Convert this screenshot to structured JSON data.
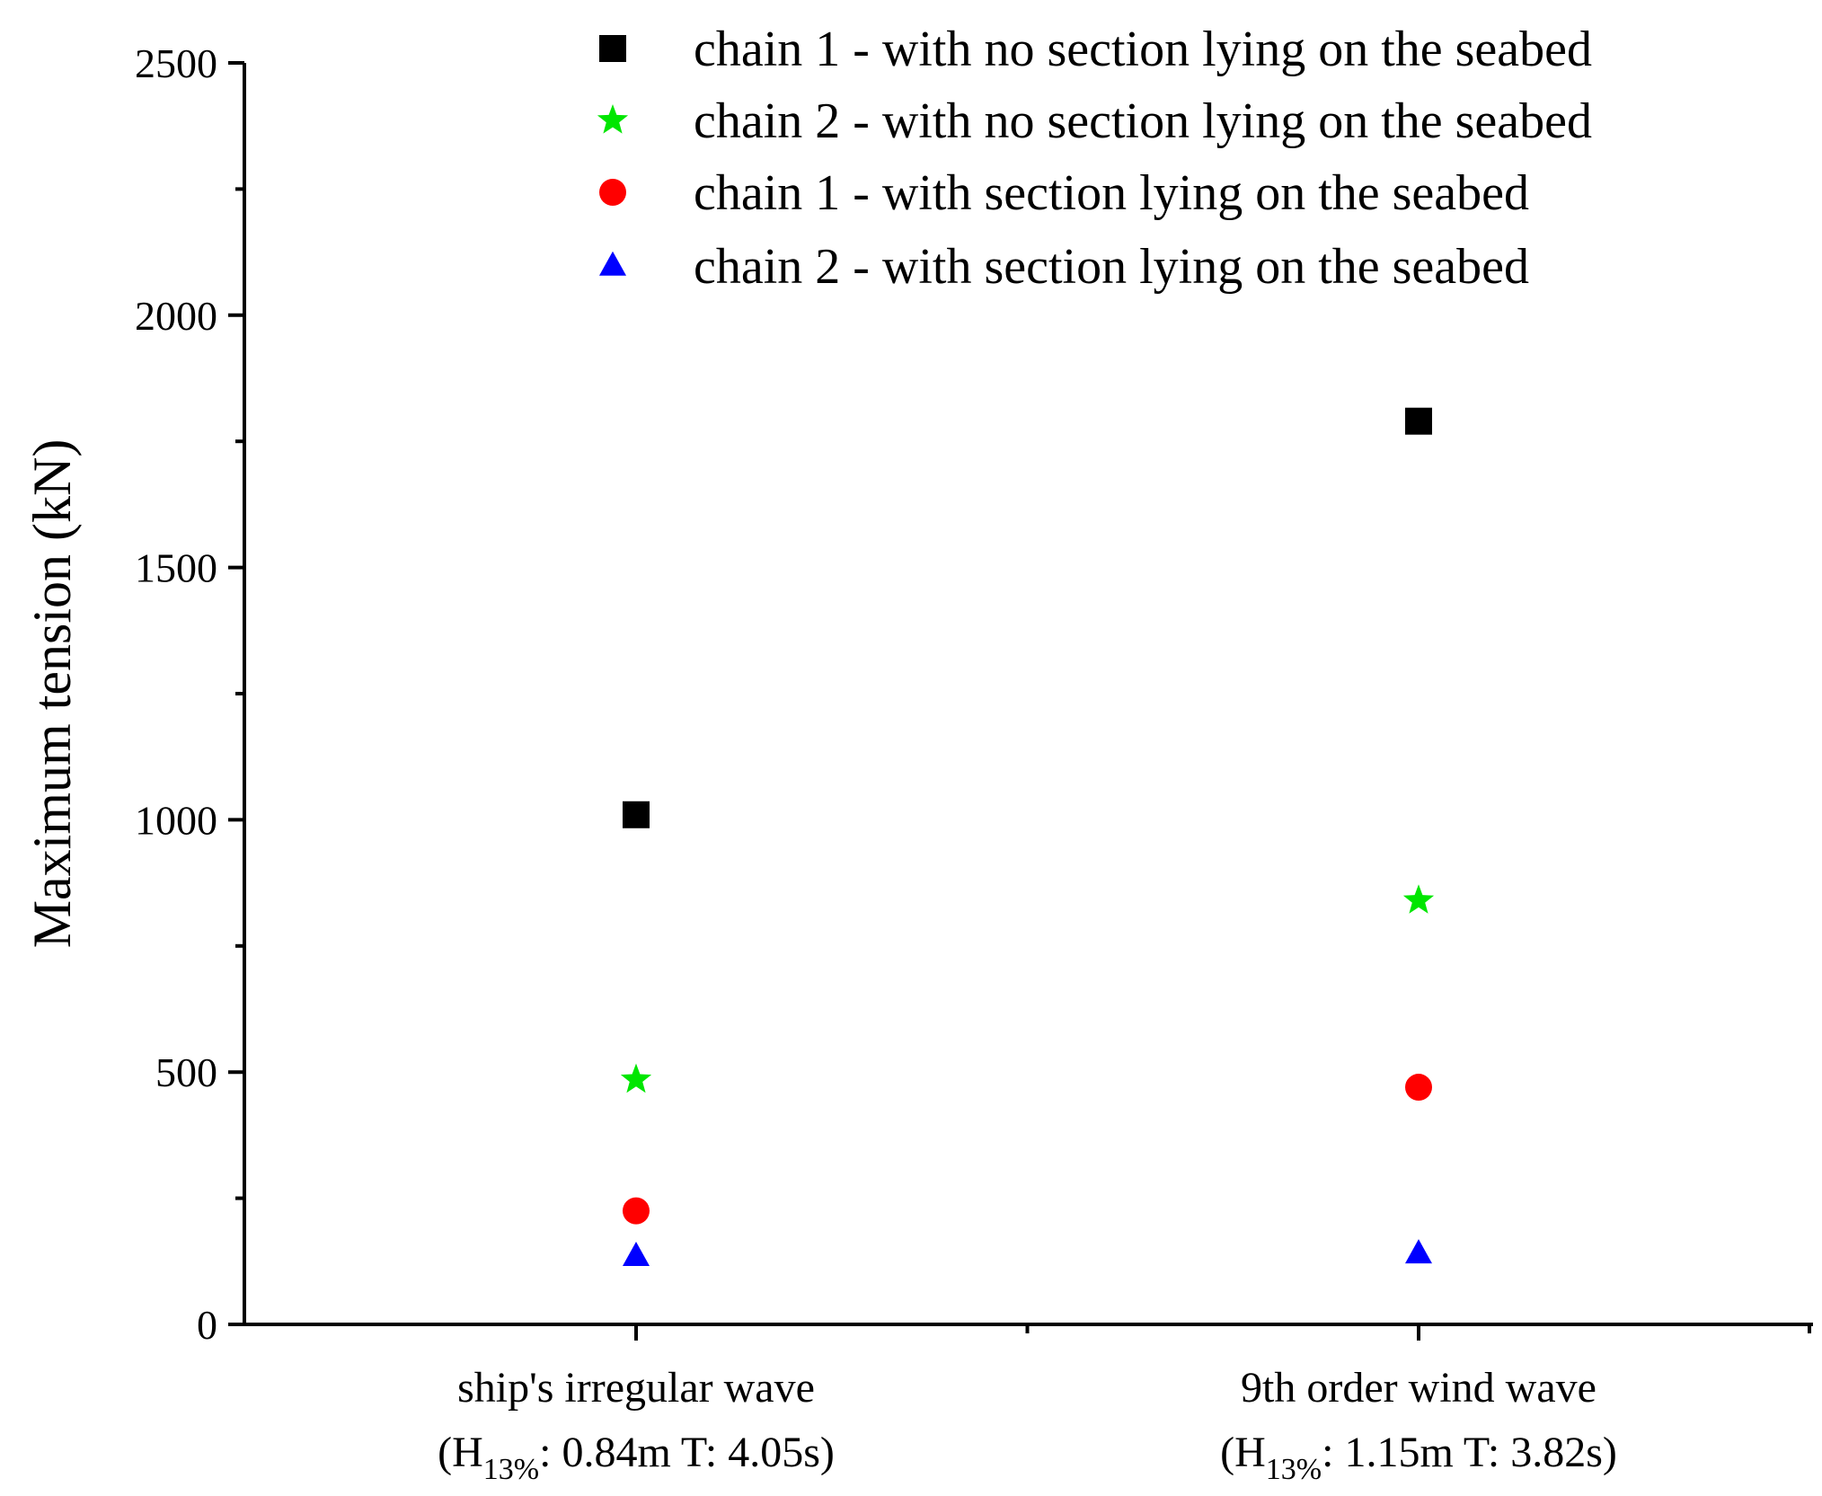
{
  "chart_data": {
    "type": "scatter",
    "title": "",
    "xlabel": "",
    "ylabel": "Maximum tension (kN)",
    "ylim": [
      0,
      2500
    ],
    "yticks": [
      0,
      500,
      1000,
      1500,
      2000,
      2500
    ],
    "grid": false,
    "legend_position": "top-right",
    "categories": [
      {
        "line1": "ship's irregular wave",
        "line2": {
          "open": "(H",
          "sub": "13%",
          "rest": ": 0.84m  T: 4.05s)"
        }
      },
      {
        "line1": "9th order wind wave",
        "line2": {
          "open": "(H",
          "sub": "13%",
          "rest": ": 1.15m  T: 3.82s)"
        }
      }
    ],
    "series": [
      {
        "name": "chain 1 - with no section lying on the seabed",
        "marker": "square",
        "color": "#000000",
        "values": [
          1010,
          1790
        ]
      },
      {
        "name": "chain 2 - with no section lying on the seabed",
        "marker": "star",
        "color": "#00e600",
        "values": [
          485,
          840
        ]
      },
      {
        "name": "chain 1 - with section lying on the seabed",
        "marker": "circle",
        "color": "#ff0000",
        "values": [
          225,
          470
        ]
      },
      {
        "name": "chain 2 - with section lying on the seabed",
        "marker": "triangle",
        "color": "#0000ff",
        "values": [
          135,
          140
        ]
      }
    ]
  }
}
